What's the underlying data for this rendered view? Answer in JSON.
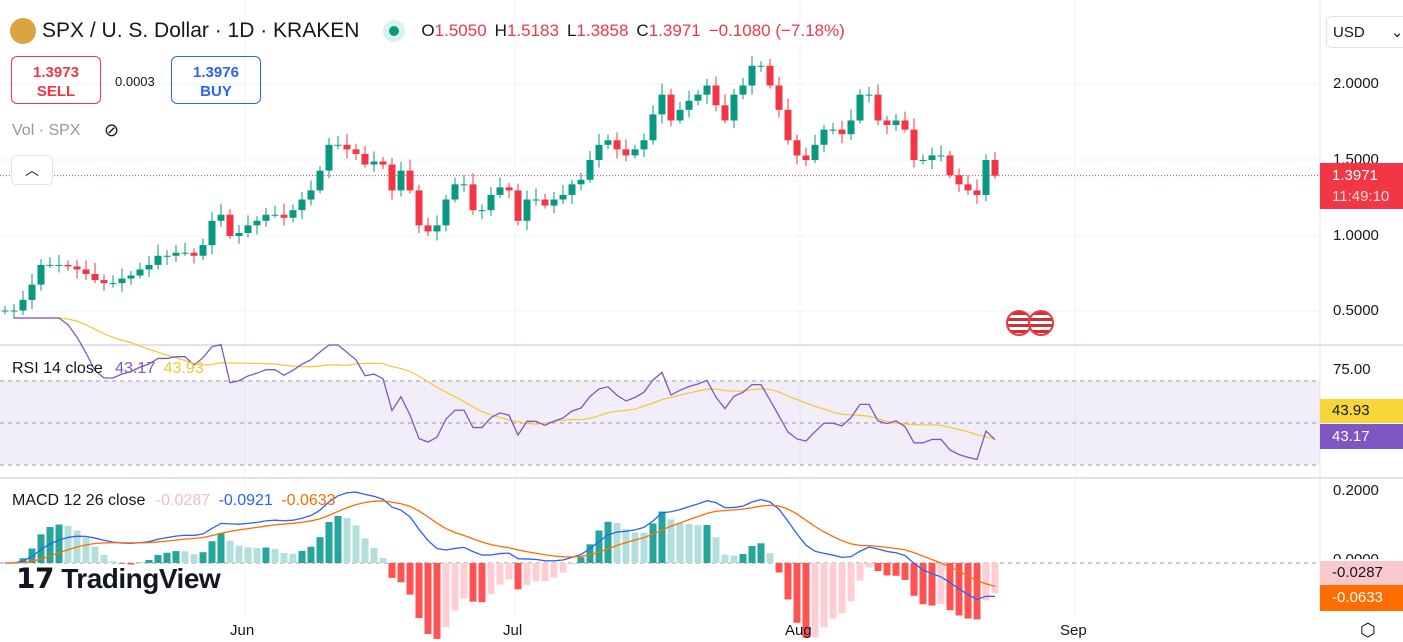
{
  "header": {
    "symbol": "SPX / U. S. Dollar · 1D · KRAKEN",
    "open_label": "O",
    "open": "1.5050",
    "high_label": "H",
    "high": "1.5183",
    "low_label": "L",
    "low": "1.3858",
    "close_label": "C",
    "close": "1.3971",
    "change": "−0.1080 (−7.18%)"
  },
  "trade": {
    "sell_price": "1.3973",
    "sell_label": "SELL",
    "spread": "0.0003",
    "buy_price": "1.3976",
    "buy_label": "BUY"
  },
  "volume_label": "Vol · SPX",
  "currency": "USD",
  "price_axis": [
    "2.0000",
    "1.5000",
    "1.0000",
    "0.5000"
  ],
  "last_price": {
    "value": "1.3971",
    "countdown": "11:49:10"
  },
  "rsi": {
    "label": "RSI 14 close",
    "value": "43.17",
    "ma": "43.93",
    "axis": "75.00",
    "color": "#7e57c2",
    "ma_color": "#f7c630"
  },
  "macd": {
    "label": "MACD 12 26 close",
    "hist": "-0.0287",
    "macd": "-0.0921",
    "signal": "-0.0633",
    "axis": "0.2000",
    "zero": "0.0000",
    "macd_color": "#2962ff",
    "signal_color": "#ff6d00"
  },
  "time_axis": [
    "Jun",
    "Jul",
    "Aug",
    "Sep"
  ],
  "watermark": "TradingView",
  "colors": {
    "up": "#089981",
    "down": "#f23645"
  },
  "chart_data": {
    "type": "candlestick",
    "ylim": [
      0.5,
      2.0
    ],
    "closes": [
      0.51,
      0.51,
      0.58,
      0.68,
      0.81,
      0.81,
      0.81,
      0.8,
      0.78,
      0.75,
      0.71,
      0.69,
      0.69,
      0.72,
      0.74,
      0.78,
      0.81,
      0.87,
      0.87,
      0.89,
      0.89,
      0.87,
      0.94,
      1.1,
      1.14,
      1.0,
      1.02,
      1.07,
      1.1,
      1.14,
      1.14,
      1.12,
      1.17,
      1.24,
      1.3,
      1.43,
      1.6,
      1.6,
      1.57,
      1.54,
      1.47,
      1.49,
      1.47,
      1.3,
      1.43,
      1.3,
      1.07,
      1.03,
      1.07,
      1.24,
      1.34,
      1.34,
      1.17,
      1.17,
      1.27,
      1.32,
      1.3,
      1.1,
      1.24,
      1.24,
      1.2,
      1.24,
      1.27,
      1.34,
      1.37,
      1.5,
      1.6,
      1.63,
      1.57,
      1.53,
      1.57,
      1.63,
      1.8,
      1.93,
      1.76,
      1.83,
      1.89,
      1.93,
      1.99,
      1.86,
      1.76,
      1.93,
      1.99,
      2.12,
      2.12,
      1.99,
      1.83,
      1.63,
      1.53,
      1.5,
      1.6,
      1.7,
      1.7,
      1.67,
      1.76,
      1.93,
      1.93,
      1.76,
      1.73,
      1.76,
      1.7,
      1.5,
      1.5,
      1.53,
      1.53,
      1.4,
      1.34,
      1.3,
      1.27,
      1.5,
      1.397
    ]
  }
}
